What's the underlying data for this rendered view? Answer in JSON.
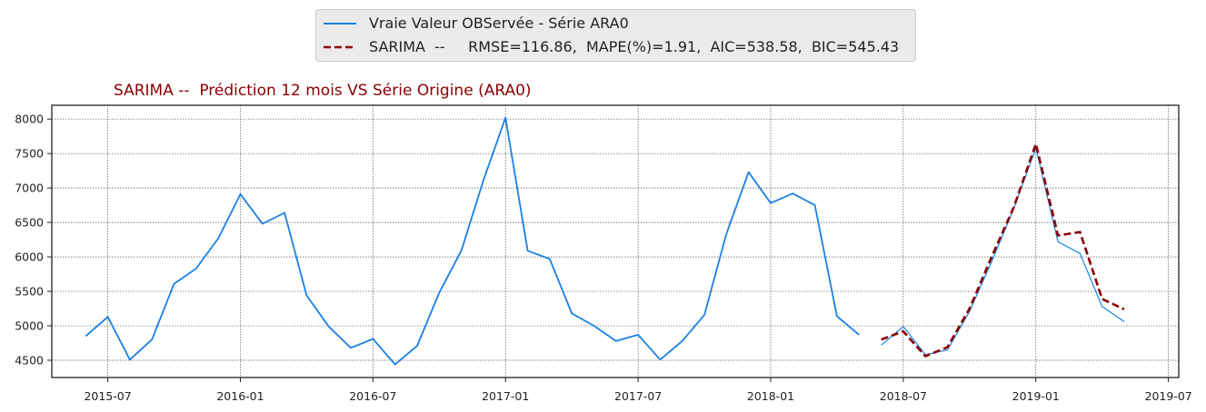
{
  "chart_data": {
    "type": "line",
    "title": "SARIMA --  Prédiction 12 mois VS Série Origine (ARA0)",
    "xlabel": "",
    "ylabel": "",
    "ylim": [
      4250,
      8200
    ],
    "xlim": [
      "2015-04-15",
      "2019-07-15"
    ],
    "grid": true,
    "legend_position": "top-center",
    "x_ticks": [
      "2015-07",
      "2016-01",
      "2016-07",
      "2017-01",
      "2017-07",
      "2018-01",
      "2018-07",
      "2019-01",
      "2019-07"
    ],
    "y_ticks": [
      4500,
      5000,
      5500,
      6000,
      6500,
      7000,
      7500,
      8000
    ],
    "series": [
      {
        "name": "Vraie Valeur OBServée - Série ARA0",
        "color": "#1a80e6",
        "style": "solid",
        "points": [
          [
            "2015-06",
            4850
          ],
          [
            "2015-07",
            5130
          ],
          [
            "2015-08",
            4510
          ],
          [
            "2015-09",
            4800
          ],
          [
            "2015-10",
            5610
          ],
          [
            "2015-11",
            5830
          ],
          [
            "2015-12",
            6270
          ],
          [
            "2016-01",
            6910
          ],
          [
            "2016-02",
            6480
          ],
          [
            "2016-03",
            6640
          ],
          [
            "2016-04",
            5440
          ],
          [
            "2016-05",
            4990
          ],
          [
            "2016-06",
            4680
          ],
          [
            "2016-07",
            4810
          ],
          [
            "2016-08",
            4440
          ],
          [
            "2016-09",
            4710
          ],
          [
            "2016-10",
            5480
          ],
          [
            "2016-11",
            6090
          ],
          [
            "2016-12",
            7110
          ],
          [
            "2017-01",
            8020
          ],
          [
            "2017-02",
            6090
          ],
          [
            "2017-03",
            5970
          ],
          [
            "2017-04",
            5180
          ],
          [
            "2017-05",
            5000
          ],
          [
            "2017-06",
            4780
          ],
          [
            "2017-07",
            4870
          ],
          [
            "2017-08",
            4510
          ],
          [
            "2017-09",
            4780
          ],
          [
            "2017-10",
            5160
          ],
          [
            "2017-11",
            6340
          ],
          [
            "2017-12",
            7230
          ],
          [
            "2018-01",
            6780
          ],
          [
            "2018-02",
            6920
          ],
          [
            "2018-03",
            6750
          ],
          [
            "2018-04",
            5140
          ],
          [
            "2018-05",
            4870
          ]
        ]
      },
      {
        "name": "",
        "color": "#1a80e6",
        "style": "thin",
        "points": [
          [
            "2018-06",
            4720
          ],
          [
            "2018-07",
            4990
          ],
          [
            "2018-08",
            4580
          ],
          [
            "2018-09",
            4650
          ],
          [
            "2018-10",
            5210
          ],
          [
            "2018-11",
            5930
          ],
          [
            "2018-12",
            6700
          ],
          [
            "2019-01",
            7580
          ],
          [
            "2019-02",
            6220
          ],
          [
            "2019-03",
            6050
          ],
          [
            "2019-04",
            5280
          ],
          [
            "2019-05",
            5060
          ]
        ]
      },
      {
        "name": "SARIMA  --     RMSE=116.86,  MAPE(%)=1.91,  AIC=538.58,  BIC=545.43",
        "color": "#8b0000",
        "style": "dashed",
        "points": [
          [
            "2018-06",
            4800
          ],
          [
            "2018-07",
            4920
          ],
          [
            "2018-08",
            4560
          ],
          [
            "2018-09",
            4690
          ],
          [
            "2018-10",
            5250
          ],
          [
            "2018-11",
            6000
          ],
          [
            "2018-12",
            6720
          ],
          [
            "2019-01",
            7640
          ],
          [
            "2019-02",
            6310
          ],
          [
            "2019-03",
            6360
          ],
          [
            "2019-04",
            5390
          ],
          [
            "2019-05",
            5240
          ]
        ]
      }
    ]
  },
  "legend": {
    "observed_label": "Vraie Valeur OBServée - Série ARA0",
    "sarima_label": "SARIMA  --     RMSE=116.86,  MAPE(%)=1.91,  AIC=538.58,  BIC=545.43"
  }
}
